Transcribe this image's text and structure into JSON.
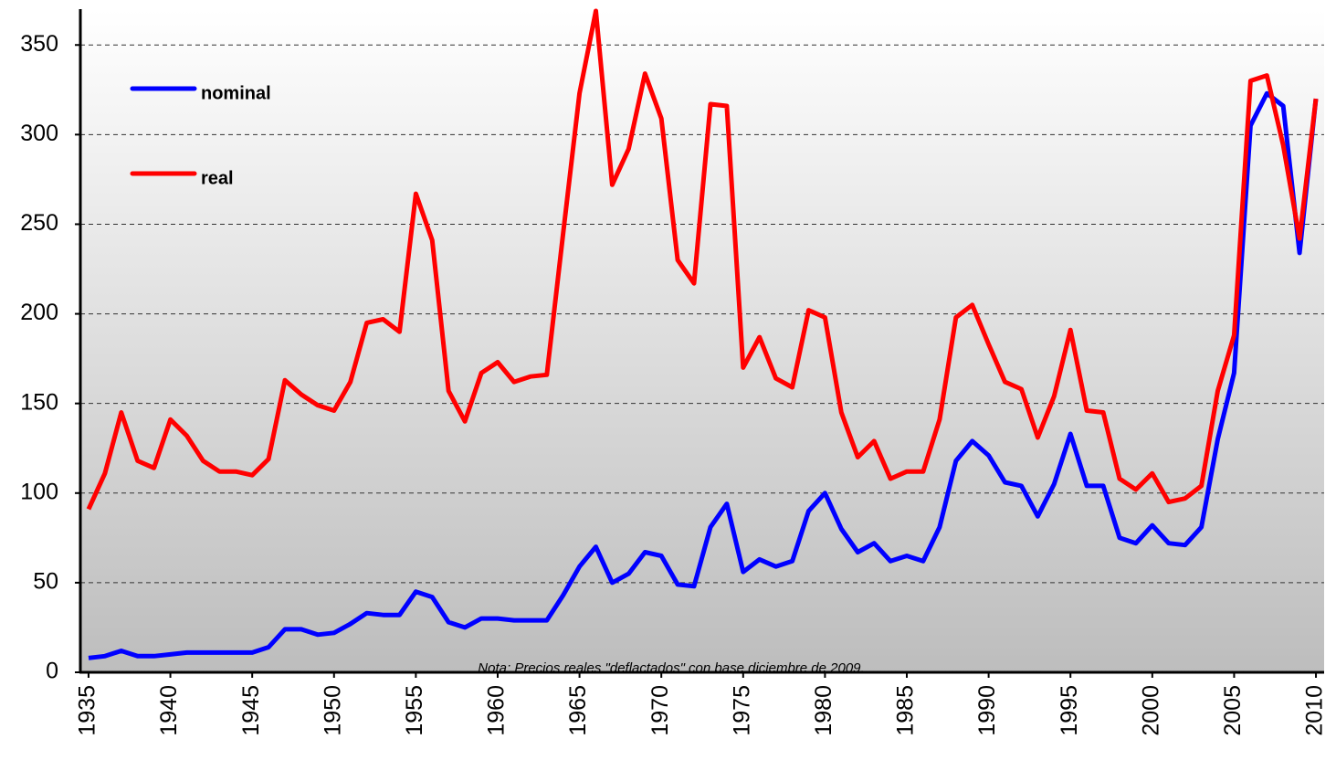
{
  "chart_data": {
    "type": "line",
    "annotation": "Nota: Precios reales \"deflactados\" con base diciembre de 2009.",
    "x": [
      1935,
      1936,
      1937,
      1938,
      1939,
      1940,
      1941,
      1942,
      1943,
      1944,
      1945,
      1946,
      1947,
      1948,
      1949,
      1950,
      1951,
      1952,
      1953,
      1954,
      1955,
      1956,
      1957,
      1958,
      1959,
      1960,
      1961,
      1962,
      1963,
      1964,
      1965,
      1966,
      1967,
      1968,
      1969,
      1970,
      1971,
      1972,
      1973,
      1974,
      1975,
      1976,
      1977,
      1978,
      1979,
      1980,
      1981,
      1982,
      1983,
      1984,
      1985,
      1986,
      1987,
      1988,
      1989,
      1990,
      1991,
      1992,
      1993,
      1994,
      1995,
      1996,
      1997,
      1998,
      1999,
      2000,
      2001,
      2002,
      2003,
      2004,
      2005,
      2006,
      2007,
      2008,
      2009,
      2010
    ],
    "series": [
      {
        "name": "nominal",
        "color": "#0000ff",
        "values": [
          8,
          9,
          12,
          9,
          9,
          10,
          11,
          11,
          11,
          11,
          11,
          14,
          24,
          24,
          21,
          22,
          27,
          33,
          32,
          32,
          45,
          42,
          28,
          25,
          30,
          30,
          29,
          29,
          29,
          43,
          59,
          70,
          50,
          55,
          67,
          65,
          49,
          48,
          81,
          94,
          56,
          63,
          59,
          62,
          90,
          100,
          80,
          67,
          72,
          62,
          65,
          62,
          81,
          118,
          129,
          121,
          106,
          104,
          87,
          105,
          133,
          104,
          104,
          75,
          72,
          82,
          72,
          71,
          81,
          130,
          167,
          305,
          323,
          316,
          234,
          320
        ]
      },
      {
        "name": "real",
        "color": "#ff0000",
        "values": [
          91,
          111,
          145,
          118,
          114,
          141,
          132,
          118,
          112,
          112,
          110,
          119,
          163,
          155,
          149,
          146,
          162,
          195,
          197,
          190,
          267,
          241,
          157,
          140,
          167,
          173,
          162,
          165,
          166,
          245,
          323,
          369,
          272,
          292,
          334,
          309,
          230,
          217,
          317,
          316,
          170,
          187,
          164,
          159,
          202,
          198,
          145,
          120,
          129,
          108,
          112,
          112,
          141,
          198,
          205,
          183,
          162,
          158,
          131,
          154,
          191,
          146,
          145,
          108,
          102,
          111,
          95,
          97,
          104,
          157,
          188,
          330,
          333,
          294,
          242,
          320
        ]
      }
    ],
    "xlim": [
      1934.5,
      2010.5
    ],
    "xticks": [
      1935,
      1940,
      1945,
      1950,
      1955,
      1960,
      1965,
      1970,
      1975,
      1980,
      1985,
      1990,
      1995,
      2000,
      2005,
      2010
    ],
    "ylim": [
      0,
      370
    ],
    "yticks": [
      0,
      50,
      100,
      150,
      200,
      250,
      300,
      350
    ],
    "grid": true
  }
}
